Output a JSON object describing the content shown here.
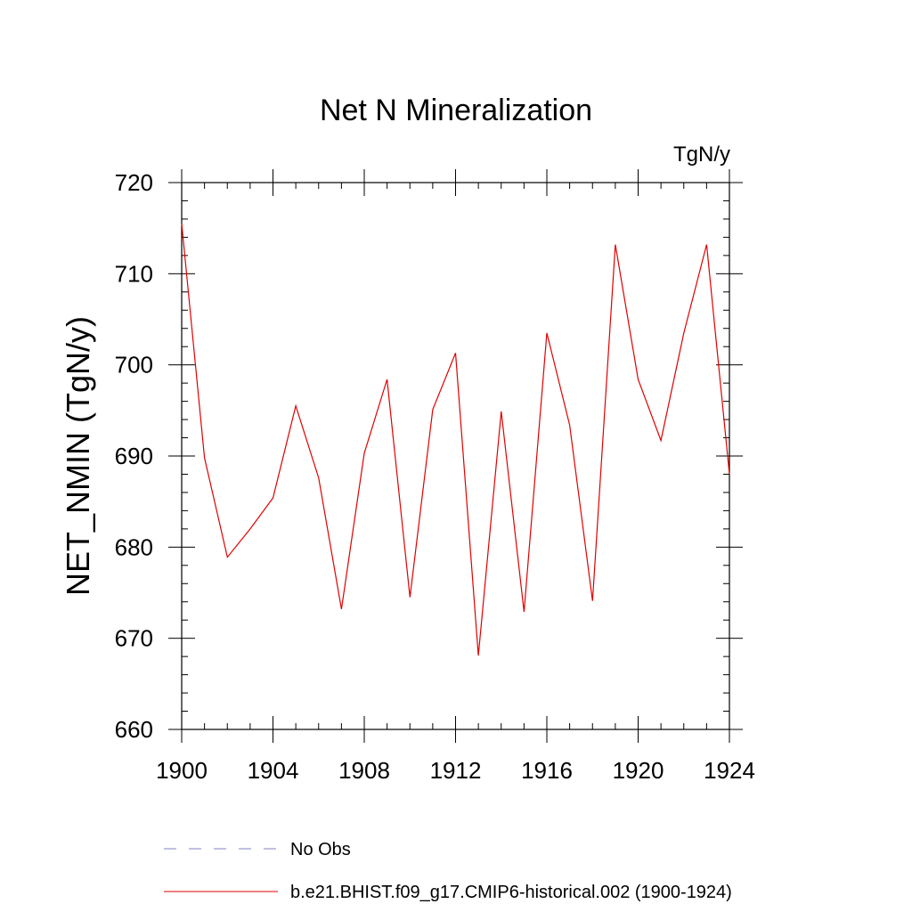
{
  "chart_data": {
    "type": "line",
    "title": "Net N Mineralization",
    "units_label": "TgN/y",
    "xlabel": "",
    "ylabel": "NET_NMIN  (TgN/y)",
    "xlim": [
      1900,
      1924
    ],
    "ylim": [
      660,
      720
    ],
    "x_ticks": [
      1900,
      1904,
      1908,
      1912,
      1916,
      1920,
      1924
    ],
    "y_ticks": [
      660,
      670,
      680,
      690,
      700,
      710,
      720
    ],
    "grid": false,
    "legend_position": "bottom-left",
    "series": [
      {
        "name": "No Obs",
        "style": "dashed",
        "color": "#8080c0",
        "x": [],
        "y": []
      },
      {
        "name": "b.e21.BHIST.f09_g17.CMIP6-historical.002 (1900-1924)",
        "style": "solid",
        "color": "#e00000",
        "x": [
          1900,
          1901,
          1902,
          1903,
          1904,
          1905,
          1906,
          1907,
          1908,
          1909,
          1910,
          1911,
          1912,
          1913,
          1914,
          1915,
          1916,
          1917,
          1918,
          1919,
          1920,
          1921,
          1922,
          1923,
          1924
        ],
        "y": [
          715.5,
          689.8,
          678.9,
          682.0,
          685.4,
          695.5,
          687.6,
          673.2,
          690.3,
          698.4,
          674.5,
          695.1,
          701.3,
          668.1,
          694.9,
          672.9,
          703.5,
          693.4,
          674.1,
          713.2,
          698.4,
          691.7,
          703.5,
          713.2,
          688.0
        ]
      }
    ]
  }
}
